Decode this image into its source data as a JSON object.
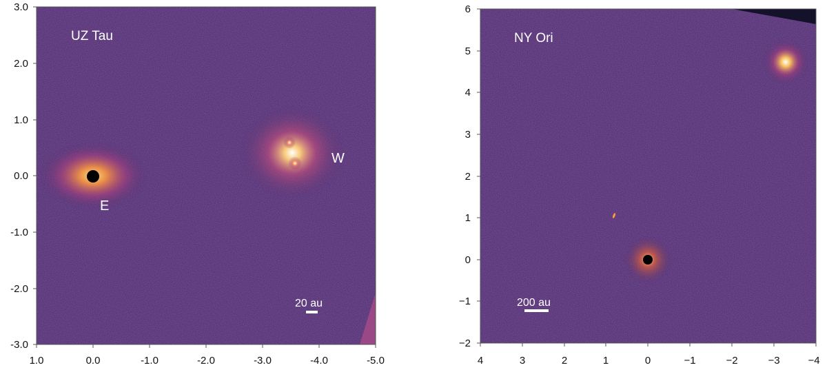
{
  "panels": [
    {
      "id": "left",
      "object_label": "UZ Tau",
      "source_labels": [
        "E",
        "W"
      ],
      "scale_bar_label": "20 au",
      "x_ticks": [
        "1.0",
        "0.0",
        "-1.0",
        "-2.0",
        "-3.0",
        "-4.0",
        "-5.0"
      ],
      "y_ticks": [
        "3.0",
        "2.0",
        "1.0",
        "0.0",
        "-1.0",
        "-2.0",
        "-3.0"
      ],
      "x_range": [
        1.0,
        -5.0
      ],
      "y_range": [
        -3.0,
        3.0
      ],
      "background_color": "#4a2a6a",
      "glow_color": "#ffb24a",
      "star_mask_color": "#000000"
    },
    {
      "id": "right",
      "object_label": "NY Ori",
      "scale_bar_label": "200 au",
      "x_ticks": [
        "4",
        "3",
        "2",
        "1",
        "0",
        "−1",
        "−2",
        "−3",
        "−4"
      ],
      "y_ticks": [
        "6",
        "5",
        "4",
        "3",
        "2",
        "1",
        "0",
        "−1",
        "−2"
      ],
      "x_range": [
        4,
        -4
      ],
      "y_range": [
        -2,
        6
      ],
      "background_color": "#4a2a6a",
      "glow_color": "#ffb24a",
      "star_mask_color": "#000000"
    }
  ]
}
